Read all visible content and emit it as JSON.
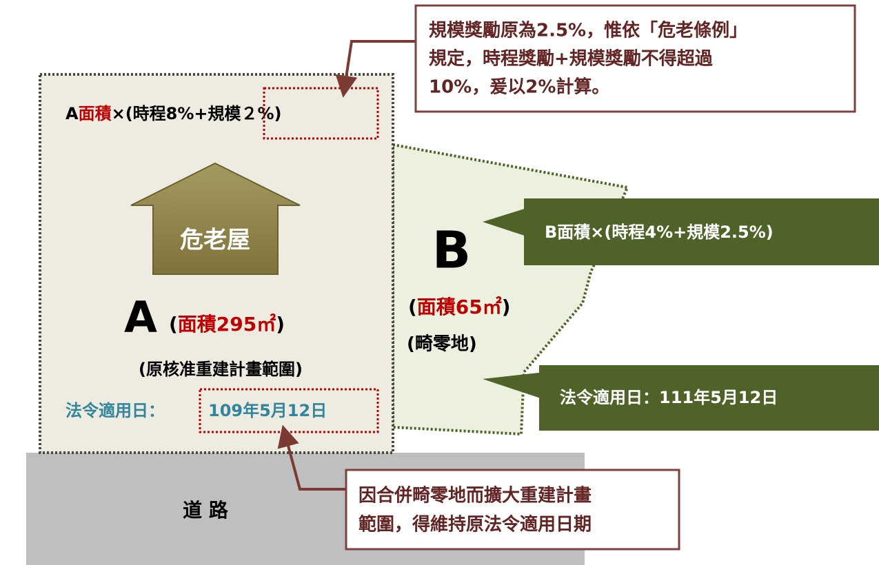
{
  "note_top": {
    "lines": [
      "規模獎勵原為2.5%，惟依「危老條例」",
      "規定，時程獎勵+規模獎勵不得超過",
      "10%，爰以2%計算。"
    ]
  },
  "area_a": {
    "formula": [
      "A",
      "面積",
      "×(時程8%+",
      "規模２%)"
    ],
    "house_label": "危老屋",
    "letter": "A",
    "area": [
      "(",
      "面積295㎡",
      ")"
    ],
    "description": "(原核准重建計畫範圍)",
    "date_label": "法令適用日：",
    "date": "109年5月12日"
  },
  "area_b": {
    "letter": "B",
    "area": [
      "(",
      "面積65㎡",
      ")"
    ],
    "description": "(畸零地)",
    "formula": "B面積×(時程4%+規模2.5%)",
    "date_text": "法令適用日：111年5月12日"
  },
  "road": "道 路",
  "note_bottom": {
    "lines": [
      "因合併畸零地而擴大重建計畫",
      "範圍，得維持原法令適用日期"
    ]
  }
}
